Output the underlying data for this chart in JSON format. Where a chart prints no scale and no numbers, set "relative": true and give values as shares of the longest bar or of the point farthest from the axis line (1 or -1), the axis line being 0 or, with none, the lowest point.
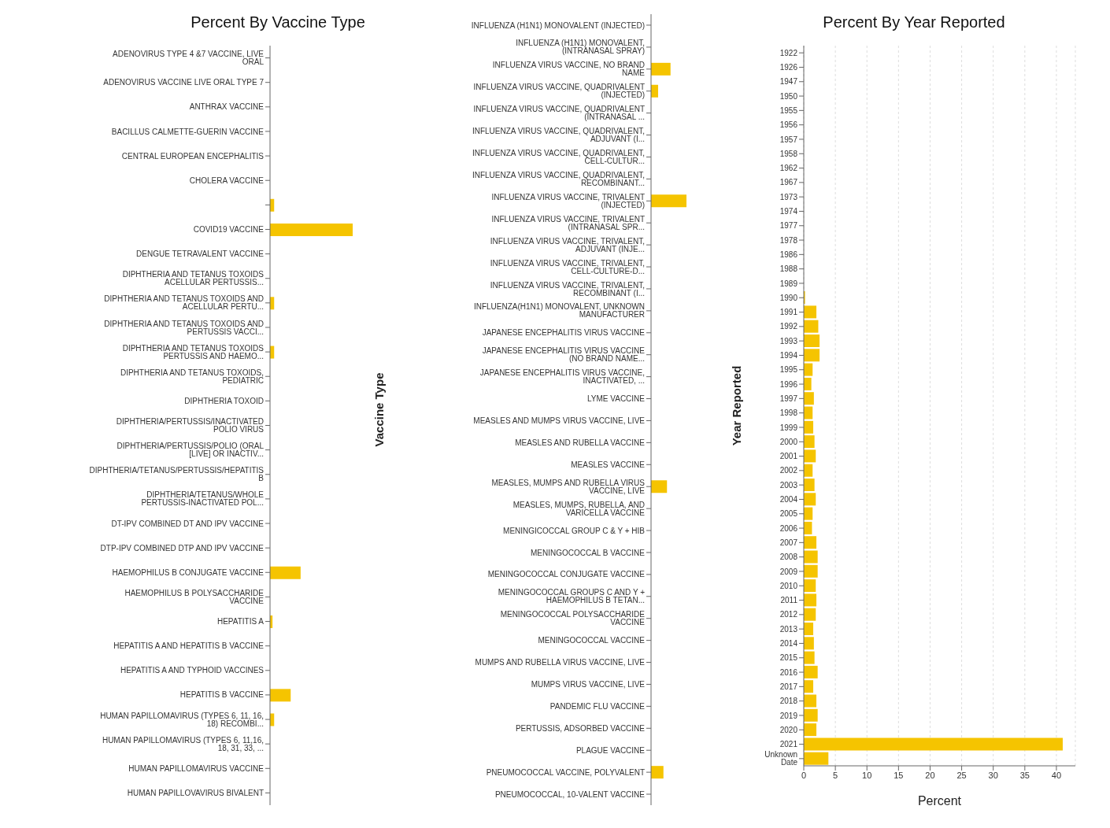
{
  "chart_data": [
    {
      "type": "bar",
      "orientation": "horizontal",
      "relative": true,
      "title": "Percent By Vaccine Type",
      "color": "#f5c400",
      "categories": [
        "ADENOVIRUS TYPE 4 &7 VACCINE, LIVE ORAL",
        "ADENOVIRUS VACCINE LIVE ORAL TYPE 7",
        "ANTHRAX VACCINE",
        "BACILLUS CALMETTE-GUERIN VACCINE",
        "CENTRAL EUROPEAN ENCEPHALITIS",
        "CHOLERA VACCINE",
        null,
        "COVID19 VACCINE",
        "DENGUE TETRAVALENT VACCINE",
        "DIPHTHERIA AND TETANUS TOXOIDS ACELLULAR PERTUSSIS...",
        "DIPHTHERIA AND TETANUS TOXOIDS AND ACELLULAR PERTU...",
        "DIPHTHERIA AND TETANUS TOXOIDS AND PERTUSSIS VACCI...",
        "DIPHTHERIA AND TETANUS TOXOIDS PERTUSSIS AND HAEMO...",
        "DIPHTHERIA AND TETANUS TOXOIDS, PEDIATRIC",
        "DIPHTHERIA TOXOID",
        "DIPHTHERIA/PERTUSSIS/INACTIVATED POLIO VIRUS",
        "DIPHTHERIA/PERTUSSIS/POLIO (ORAL [LIVE] OR INACTIV...",
        "DIPHTHERIA/TETANUS/PERTUSSIS/HEPATITIS B",
        "DIPHTHERIA/TETANUS/WHOLE PERTUSSIS-INACTIVATED POL...",
        "DT-IPV COMBINED DT AND IPV VACCINE",
        "DTP-IPV COMBINED DTP AND IPV VACCINE",
        "HAEMOPHILUS B CONJUGATE VACCINE",
        "HAEMOPHILUS B POLYSACCHARIDE VACCINE",
        "HEPATITIS A",
        "HEPATITIS A AND HEPATITIS B VACCINE",
        "HEPATITIS A AND TYPHOID VACCINES",
        "HEPATITIS B VACCINE",
        "HUMAN PAPILLOMAVIRUS (TYPES 6, 11, 16, 18) RECOMBI...",
        "HUMAN PAPILLOMAVIRUS (TYPES 6, 11,16, 18, 31, 33, ...",
        "HUMAN PAPILLOMAVIRUS VACCINE",
        "HUMAN PAPILLOVAVIRUS BIVALENT"
      ],
      "values": [
        0,
        0,
        0,
        0,
        0,
        0,
        0.05,
        1,
        0,
        0,
        0.05,
        0,
        0.05,
        0,
        0,
        0,
        0,
        0,
        0,
        0,
        0,
        0.37,
        0,
        0.03,
        0,
        0,
        0.25,
        0.05,
        0,
        0,
        0
      ]
    },
    {
      "type": "bar",
      "orientation": "horizontal",
      "relative": true,
      "ylabel": "Vaccine Type",
      "color": "#f5c400",
      "categories": [
        "INFLUENZA (H1N1) MONOVALENT (INJECTED)",
        "INFLUENZA (H1N1) MONOVALENT, (INTRANASAL SPRAY)",
        "INFLUENZA VIRUS VACCINE, NO BRAND NAME",
        "INFLUENZA VIRUS VACCINE, QUADRIVALENT (INJECTED)",
        "INFLUENZA VIRUS VACCINE, QUADRIVALENT (INTRANASAL ...",
        "INFLUENZA VIRUS VACCINE, QUADRIVALENT, ADJUVANT (I...",
        "INFLUENZA VIRUS VACCINE, QUADRIVALENT, CELL-CULTUR...",
        "INFLUENZA VIRUS VACCINE, QUADRIVALENT, RECOMBINANT...",
        "INFLUENZA VIRUS VACCINE, TRIVALENT (INJECTED)",
        "INFLUENZA VIRUS VACCINE, TRIVALENT (INTRANASAL SPR...",
        "INFLUENZA VIRUS VACCINE, TRIVALENT, ADJUVANT (INJE...",
        "INFLUENZA VIRUS VACCINE, TRIVALENT, CELL-CULTURE-D...",
        "INFLUENZA VIRUS VACCINE, TRIVALENT, RECOMBINANT (I...",
        "INFLUENZA(H1N1) MONOVALENT, UNKNOWN MANUFACTURER",
        "JAPANESE ENCEPHALITIS VIRUS VACCINE",
        "JAPANESE ENCEPHALITIS VIRUS VACCINE (NO BRAND NAME...",
        "JAPANESE ENCEPHALITIS VIRUS VACCINE, INACTIVATED, ...",
        "LYME VACCINE",
        "MEASLES AND MUMPS VIRUS VACCINE, LIVE",
        "MEASLES AND RUBELLA VACCINE",
        "MEASLES VACCINE",
        "MEASLES, MUMPS AND RUBELLA VIRUS VACCINE, LIVE",
        "MEASLES, MUMPS, RUBELLA, AND VARICELLA VACCINE",
        "MENINGICOCCAL GROUP C & Y + HIB",
        "MENINGOCOCCAL B VACCINE",
        "MENINGOCOCCAL CONJUGATE VACCINE",
        "MENINGOCOCCAL GROUPS C AND Y + HAEMOPHILUS B TETAN...",
        "MENINGOCOCCAL POLYSACCHARIDE VACCINE",
        "MENINGOCOCCAL VACCINE",
        "MUMPS AND RUBELLA VIRUS VACCINE, LIVE",
        "MUMPS VIRUS VACCINE, LIVE",
        "PANDEMIC FLU VACCINE",
        "PERTUSSIS, ADSORBED VACCINE",
        "PLAGUE VACCINE",
        "PNEUMOCOCCAL VACCINE, POLYVALENT",
        "PNEUMOCOCCAL, 10-VALENT VACCINE"
      ],
      "values": [
        0,
        0,
        0.55,
        0.2,
        0,
        0,
        0,
        0,
        1,
        0,
        0,
        0,
        0,
        0,
        0,
        0,
        0,
        0,
        0,
        0,
        0,
        0.45,
        0,
        0,
        0,
        0,
        0,
        0,
        0,
        0,
        0,
        0,
        0,
        0,
        0.35,
        0
      ]
    },
    {
      "type": "bar",
      "orientation": "horizontal",
      "title": "Percent By Year Reported",
      "xlabel": "Percent",
      "ylabel": "Year Reported",
      "color": "#f5c400",
      "grid": "x",
      "categories": [
        "1922",
        "1926",
        "1947",
        "1950",
        "1955",
        "1956",
        "1957",
        "1958",
        "1962",
        "1967",
        "1973",
        "1974",
        "1977",
        "1978",
        "1986",
        "1988",
        "1989",
        "1990",
        "1991",
        "1992",
        "1993",
        "1994",
        "1995",
        "1996",
        "1997",
        "1998",
        "1999",
        "2000",
        "2001",
        "2002",
        "2003",
        "2004",
        "2005",
        "2006",
        "2007",
        "2008",
        "2009",
        "2010",
        "2011",
        "2012",
        "2013",
        "2014",
        "2015",
        "2016",
        "2017",
        "2018",
        "2019",
        "2020",
        "2021",
        "Unknown Date"
      ],
      "values": [
        0,
        0,
        0,
        0,
        0,
        0,
        0,
        0,
        0,
        0,
        0,
        0,
        0,
        0,
        0,
        0,
        0,
        0.2,
        2.0,
        2.3,
        2.5,
        2.5,
        1.4,
        1.2,
        1.6,
        1.4,
        1.5,
        1.7,
        1.9,
        1.4,
        1.7,
        1.9,
        1.4,
        1.3,
        2.0,
        2.2,
        2.2,
        1.9,
        2.0,
        1.9,
        1.5,
        1.6,
        1.7,
        2.2,
        1.5,
        2.0,
        2.2,
        2.0,
        41,
        3.9
      ],
      "xlim": [
        0,
        43
      ],
      "xticks": [
        0,
        5,
        10,
        15,
        20,
        25,
        30,
        35,
        40
      ]
    }
  ]
}
